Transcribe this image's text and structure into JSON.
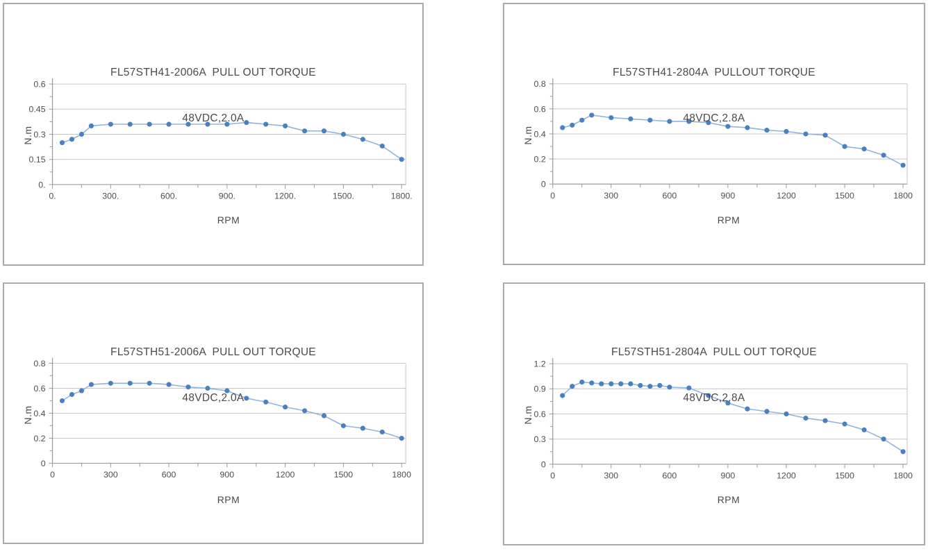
{
  "page": {
    "background_color": "#ffffff",
    "description": "Four pull-out torque performance curves for FL57STH stepper motors"
  },
  "style_tokens": {
    "marker_color": "#4a80c0",
    "line_color": "#8fb4dd",
    "grid_color": "#c6c6c8",
    "axis_color": "#9a9a9c",
    "tick_color": "#9a9a9c",
    "text_color": "#4f4f4f",
    "panel_border_color": "#a9a9ad"
  },
  "chart_data": [
    {
      "type": "line",
      "title_line1": "FL57STH41-2006A  PULL OUT TORQUE",
      "title_line2": "48VDC,2.0A",
      "xlabel": "RPM",
      "ylabel": "N.m",
      "xlim": [
        0,
        1800
      ],
      "ylim": [
        0,
        0.6
      ],
      "x_ticks": [
        0,
        300,
        600,
        900,
        1200,
        1500,
        1800
      ],
      "x_tick_labels": [
        "0.",
        "300.",
        "600.",
        "900.",
        "1200.",
        "1500.",
        "1800."
      ],
      "x_minor_ticks": [
        150,
        450,
        750,
        1050,
        1350,
        1650
      ],
      "y_ticks": [
        0,
        0.15,
        0.3,
        0.45,
        0.6
      ],
      "y_tick_labels": [
        "0.",
        "0.15",
        "0.3",
        "0.45",
        "0.6"
      ],
      "y_minor_ticks": [
        0.075,
        0.225,
        0.375,
        0.525
      ],
      "grid": "horizontal",
      "legend": "none",
      "x": [
        50,
        100,
        150,
        200,
        300,
        400,
        500,
        600,
        700,
        800,
        900,
        1000,
        1100,
        1200,
        1300,
        1400,
        1500,
        1600,
        1700,
        1800
      ],
      "y": [
        0.25,
        0.27,
        0.3,
        0.35,
        0.36,
        0.36,
        0.36,
        0.36,
        0.36,
        0.36,
        0.36,
        0.37,
        0.36,
        0.35,
        0.32,
        0.32,
        0.3,
        0.27,
        0.23,
        0.15
      ]
    },
    {
      "type": "line",
      "title_line1": "FL57STH41-2804A  PULLOUT TORQUE",
      "title_line2": "48VDC,2.8A",
      "xlabel": "RPM",
      "ylabel": "N.m",
      "xlim": [
        0,
        1800
      ],
      "ylim": [
        0,
        0.8
      ],
      "x_ticks": [
        0,
        300,
        600,
        900,
        1200,
        1500,
        1800
      ],
      "x_tick_labels": [
        "0",
        "300",
        "600",
        "900",
        "1200",
        "1500",
        "1800"
      ],
      "x_minor_ticks": [
        150,
        450,
        750,
        1050,
        1350,
        1650
      ],
      "y_ticks": [
        0,
        0.2,
        0.4,
        0.6,
        0.8
      ],
      "y_tick_labels": [
        "0",
        "0.2",
        "0.4",
        "0.6",
        "0.8"
      ],
      "y_minor_ticks": [
        0.1,
        0.3,
        0.5,
        0.7
      ],
      "grid": "horizontal",
      "legend": "none",
      "x": [
        50,
        100,
        150,
        200,
        300,
        400,
        500,
        600,
        700,
        800,
        900,
        1000,
        1100,
        1200,
        1300,
        1400,
        1500,
        1600,
        1700,
        1800
      ],
      "y": [
        0.45,
        0.47,
        0.51,
        0.55,
        0.53,
        0.52,
        0.51,
        0.5,
        0.5,
        0.49,
        0.46,
        0.45,
        0.43,
        0.42,
        0.4,
        0.39,
        0.3,
        0.28,
        0.23,
        0.15
      ]
    },
    {
      "type": "line",
      "title_line1": "FL57STH51-2006A  PULL OUT TORQUE",
      "title_line2": "48VDC,2.0A",
      "xlabel": "RPM",
      "ylabel": "N.m",
      "xlim": [
        0,
        1800
      ],
      "ylim": [
        0,
        0.8
      ],
      "x_ticks": [
        0,
        300,
        600,
        900,
        1200,
        1500,
        1800
      ],
      "x_tick_labels": [
        "0",
        "300",
        "600",
        "900",
        "1200",
        "1500",
        "1800"
      ],
      "x_minor_ticks": [
        150,
        450,
        750,
        1050,
        1350,
        1650
      ],
      "y_ticks": [
        0,
        0.2,
        0.4,
        0.6,
        0.8
      ],
      "y_tick_labels": [
        "0",
        "0.2",
        "0.4",
        "0.6",
        "0.8"
      ],
      "y_minor_ticks": [
        0.1,
        0.3,
        0.5,
        0.7
      ],
      "grid": "horizontal",
      "legend": "none",
      "x": [
        50,
        100,
        150,
        200,
        300,
        400,
        500,
        600,
        700,
        800,
        900,
        1000,
        1100,
        1200,
        1300,
        1400,
        1500,
        1600,
        1700,
        1800
      ],
      "y": [
        0.5,
        0.55,
        0.58,
        0.63,
        0.64,
        0.64,
        0.64,
        0.63,
        0.61,
        0.6,
        0.58,
        0.52,
        0.49,
        0.45,
        0.42,
        0.38,
        0.3,
        0.28,
        0.25,
        0.2
      ]
    },
    {
      "type": "line",
      "title_line1": "FL57STH51-2804A  PULL OUT TORQUE",
      "title_line2": "48VDC,2.8A",
      "xlabel": "RPM",
      "ylabel": "N.m",
      "xlim": [
        0,
        1800
      ],
      "ylim": [
        0,
        1.2
      ],
      "x_ticks": [
        0,
        300,
        600,
        900,
        1200,
        1500,
        1800
      ],
      "x_tick_labels": [
        "0",
        "300",
        "600",
        "900",
        "1200",
        "1500",
        "1800"
      ],
      "x_minor_ticks": [
        150,
        450,
        750,
        1050,
        1350,
        1650
      ],
      "y_ticks": [
        0,
        0.3,
        0.6,
        0.9,
        1.2
      ],
      "y_tick_labels": [
        "0",
        "0.3",
        "0.6",
        "0.9",
        "1.2"
      ],
      "y_minor_ticks": [
        0.15,
        0.45,
        0.75,
        1.05
      ],
      "grid": "horizontal",
      "legend": "none",
      "x": [
        50,
        100,
        150,
        200,
        250,
        300,
        350,
        400,
        450,
        500,
        550,
        600,
        700,
        800,
        900,
        1000,
        1100,
        1200,
        1300,
        1400,
        1500,
        1600,
        1700,
        1800
      ],
      "y": [
        0.82,
        0.93,
        0.98,
        0.97,
        0.96,
        0.96,
        0.96,
        0.96,
        0.94,
        0.93,
        0.94,
        0.92,
        0.91,
        0.82,
        0.73,
        0.66,
        0.63,
        0.6,
        0.55,
        0.52,
        0.48,
        0.41,
        0.3,
        0.15
      ]
    }
  ]
}
